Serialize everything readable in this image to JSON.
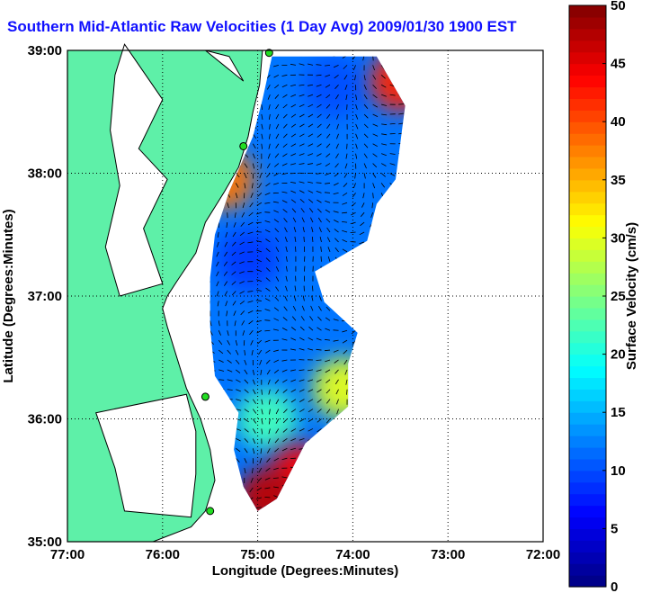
{
  "title": "Southern Mid-Atlantic Raw Velocities (1 Day Avg) 2009/01/30 1900 EST",
  "chart_data": {
    "type": "heatmap",
    "title": "Southern Mid-Atlantic Raw Velocities (1 Day Avg) 2009/01/30 1900 EST",
    "xlabel": "Longitude (Degrees:Minutes)",
    "ylabel": "Latitude (Degrees:Minutes)",
    "colorbar_label": "Surface Velocity (cm/s)",
    "x_ticks": [
      {
        "value": -77,
        "label": "77:00"
      },
      {
        "value": -76,
        "label": "76:00"
      },
      {
        "value": -75,
        "label": "75:00"
      },
      {
        "value": -74,
        "label": "74:00"
      },
      {
        "value": -73,
        "label": "73:00"
      },
      {
        "value": -72,
        "label": "72:00"
      }
    ],
    "y_ticks": [
      {
        "value": 35,
        "label": "35:00"
      },
      {
        "value": 36,
        "label": "36:00"
      },
      {
        "value": 37,
        "label": "37:00"
      },
      {
        "value": 38,
        "label": "38:00"
      },
      {
        "value": 39,
        "label": "39:00"
      }
    ],
    "xlim": [
      -77,
      -72
    ],
    "ylim": [
      35,
      39
    ],
    "colorbar_range": [
      0,
      50
    ],
    "colorbar_ticks": [
      0,
      5,
      10,
      15,
      20,
      25,
      30,
      35,
      40,
      45,
      50
    ],
    "grid": true,
    "colors": {
      "land": "#5ef0a8",
      "low": "#1e5fff",
      "mid": "#28e8d0",
      "high": "#8a0000",
      "title": "#1010ff"
    },
    "stations": [
      {
        "lon": -74.88,
        "lat": 38.98
      },
      {
        "lon": -75.15,
        "lat": 38.22
      },
      {
        "lon": -75.55,
        "lat": 36.18
      },
      {
        "lon": -75.5,
        "lat": 35.25
      }
    ],
    "speed_samples": [
      {
        "lon": -74.2,
        "lat": 38.7,
        "speed": 10
      },
      {
        "lon": -73.5,
        "lat": 38.75,
        "speed": 42
      },
      {
        "lon": -75.35,
        "lat": 37.95,
        "speed": 38
      },
      {
        "lon": -74.6,
        "lat": 37.6,
        "speed": 11
      },
      {
        "lon": -75.1,
        "lat": 37.3,
        "speed": 9
      },
      {
        "lon": -74.1,
        "lat": 36.25,
        "speed": 30
      },
      {
        "lon": -74.9,
        "lat": 36.0,
        "speed": 22
      },
      {
        "lon": -74.55,
        "lat": 35.55,
        "speed": 44
      },
      {
        "lon": -74.9,
        "lat": 35.35,
        "speed": 47
      }
    ]
  }
}
